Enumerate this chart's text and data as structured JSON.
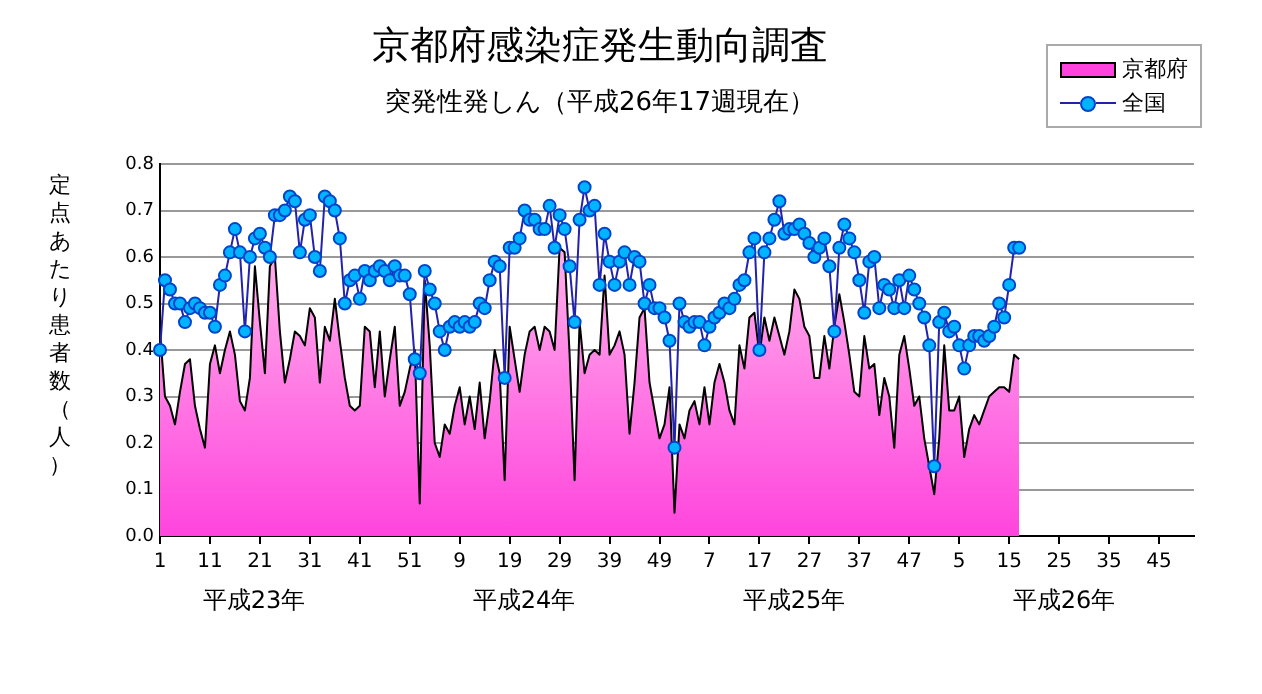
{
  "chart_data": {
    "type": "line",
    "title": "京都府感染症発生動向調査",
    "subtitle": "突発性発しん（平成26年17週現在）",
    "ylabel": "定点あたり患者数（人）",
    "categories": [
      "1",
      null,
      null,
      null,
      null,
      null,
      null,
      null,
      null,
      null,
      "11",
      null,
      null,
      null,
      null,
      null,
      null,
      null,
      null,
      null,
      "21",
      null,
      null,
      null,
      null,
      null,
      null,
      null,
      null,
      null,
      "31",
      null,
      null,
      null,
      null,
      null,
      null,
      null,
      null,
      null,
      "41",
      null,
      null,
      null,
      null,
      null,
      null,
      null,
      null,
      null,
      "51",
      null,
      null,
      null,
      null,
      null,
      null,
      null,
      null,
      null,
      "9",
      null,
      null,
      null,
      null,
      null,
      null,
      null,
      null,
      null,
      "19",
      null,
      null,
      null,
      null,
      null,
      null,
      null,
      null,
      null,
      "29",
      null,
      null,
      null,
      null,
      null,
      null,
      null,
      null,
      null,
      "39",
      null,
      null,
      null,
      null,
      null,
      null,
      null,
      null,
      null,
      "49",
      null,
      null,
      null,
      null,
      null,
      null,
      null,
      null,
      null,
      "7",
      null,
      null,
      null,
      null,
      null,
      null,
      null,
      null,
      null,
      "17",
      null,
      null,
      null,
      null,
      null,
      null,
      null,
      null,
      null,
      "27",
      null,
      null,
      null,
      null,
      null,
      null,
      null,
      null,
      null,
      "37",
      null,
      null,
      null,
      null,
      null,
      null,
      null,
      null,
      null,
      "47",
      null,
      null,
      null,
      null,
      null,
      null,
      null,
      null,
      null,
      "5",
      null,
      null,
      null,
      null,
      null,
      null,
      null,
      null,
      null,
      "15",
      null,
      null,
      null,
      null,
      null,
      null,
      null,
      null,
      null,
      "25",
      null,
      null,
      null,
      null,
      null,
      null,
      null,
      null,
      null,
      "35",
      null,
      null,
      null,
      null,
      null,
      null,
      null,
      null,
      null,
      "45",
      null,
      null,
      null,
      null,
      null,
      null,
      null
    ],
    "series": [
      {
        "name": "京都府",
        "type": "area",
        "color": "#ff44dd",
        "marker": "none",
        "values": [
          0.44,
          0.3,
          0.28,
          0.24,
          0.31,
          0.37,
          0.38,
          0.28,
          0.23,
          0.19,
          0.37,
          0.41,
          0.35,
          0.4,
          0.44,
          0.39,
          0.29,
          0.27,
          0.34,
          0.58,
          0.46,
          0.35,
          0.58,
          0.6,
          0.44,
          0.33,
          0.38,
          0.44,
          0.43,
          0.41,
          0.49,
          0.47,
          0.33,
          0.45,
          0.42,
          0.51,
          0.42,
          0.34,
          0.28,
          0.27,
          0.28,
          0.45,
          0.44,
          0.32,
          0.44,
          0.3,
          0.38,
          0.45,
          0.28,
          0.31,
          0.36,
          0.4,
          0.07,
          0.55,
          0.41,
          0.2,
          0.17,
          0.24,
          0.22,
          0.28,
          0.32,
          0.24,
          0.3,
          0.23,
          0.33,
          0.21,
          0.29,
          0.4,
          0.35,
          0.12,
          0.45,
          0.38,
          0.31,
          0.39,
          0.44,
          0.45,
          0.4,
          0.45,
          0.44,
          0.4,
          0.62,
          0.61,
          0.39,
          0.12,
          0.46,
          0.35,
          0.39,
          0.4,
          0.39,
          0.56,
          0.39,
          0.41,
          0.44,
          0.39,
          0.22,
          0.33,
          0.47,
          0.49,
          0.33,
          0.27,
          0.21,
          0.24,
          0.32,
          0.05,
          0.24,
          0.21,
          0.27,
          0.29,
          0.24,
          0.32,
          0.24,
          0.33,
          0.37,
          0.33,
          0.27,
          0.24,
          0.41,
          0.36,
          0.47,
          0.48,
          0.39,
          0.47,
          0.42,
          0.47,
          0.43,
          0.39,
          0.44,
          0.53,
          0.51,
          0.45,
          0.43,
          0.34,
          0.34,
          0.43,
          0.36,
          0.45,
          0.52,
          0.46,
          0.39,
          0.31,
          0.3,
          0.43,
          0.36,
          0.37,
          0.26,
          0.34,
          0.3,
          0.19,
          0.39,
          0.43,
          0.36,
          0.28,
          0.3,
          0.21,
          0.15,
          0.09,
          0.21,
          0.41,
          0.27,
          0.27,
          0.3,
          0.17,
          0.23,
          0.26,
          0.24,
          0.27,
          0.3,
          0.31,
          0.32,
          0.32,
          0.31,
          0.39,
          0.38,
          null,
          null,
          null,
          null,
          null,
          null,
          null,
          null,
          null,
          null,
          null,
          null,
          null,
          null,
          null,
          null,
          null,
          null,
          null,
          null,
          null,
          null,
          null,
          null,
          null,
          null,
          null,
          null,
          null,
          null,
          null,
          null,
          null,
          null,
          null
        ]
      },
      {
        "name": "全国",
        "type": "line",
        "color": "#00b4ff",
        "marker": "circle",
        "values": [
          0.4,
          0.55,
          0.53,
          0.5,
          0.5,
          0.46,
          0.49,
          0.5,
          0.49,
          0.48,
          0.48,
          0.45,
          0.54,
          0.56,
          0.61,
          0.66,
          0.61,
          0.44,
          0.6,
          0.64,
          0.65,
          0.62,
          0.6,
          0.69,
          0.69,
          0.7,
          0.73,
          0.72,
          0.61,
          0.68,
          0.69,
          0.6,
          0.57,
          0.73,
          0.72,
          0.7,
          0.64,
          0.5,
          0.55,
          0.56,
          0.51,
          0.57,
          0.55,
          0.57,
          0.58,
          0.57,
          0.55,
          0.58,
          0.56,
          0.56,
          0.52,
          0.38,
          0.35,
          0.57,
          0.53,
          0.5,
          0.44,
          0.4,
          0.45,
          0.46,
          0.45,
          0.46,
          0.45,
          0.46,
          0.5,
          0.49,
          0.55,
          0.59,
          0.58,
          0.34,
          0.62,
          0.62,
          0.64,
          0.7,
          0.68,
          0.68,
          0.66,
          0.66,
          0.71,
          0.62,
          0.69,
          0.66,
          0.58,
          0.46,
          0.68,
          0.75,
          0.7,
          0.71,
          0.54,
          0.65,
          0.59,
          0.54,
          0.59,
          0.61,
          0.54,
          0.6,
          0.59,
          0.5,
          0.54,
          0.49,
          0.49,
          0.47,
          0.42,
          0.19,
          0.5,
          0.46,
          0.45,
          0.46,
          0.46,
          0.41,
          0.45,
          0.47,
          0.48,
          0.5,
          0.49,
          0.51,
          0.54,
          0.55,
          0.61,
          0.64,
          0.4,
          0.61,
          0.64,
          0.68,
          0.72,
          0.65,
          0.66,
          0.66,
          0.67,
          0.65,
          0.63,
          0.6,
          0.62,
          0.64,
          0.58,
          0.44,
          0.62,
          0.67,
          0.64,
          0.61,
          0.55,
          0.48,
          0.59,
          0.6,
          0.49,
          0.54,
          0.53,
          0.49,
          0.55,
          0.49,
          0.56,
          0.53,
          0.5,
          0.47,
          0.41,
          0.15,
          0.46,
          0.48,
          0.44,
          0.45,
          0.41,
          0.36,
          0.41,
          0.43,
          0.43,
          0.42,
          0.43,
          0.45,
          0.5,
          0.47,
          0.54,
          0.62,
          0.62,
          null,
          null,
          null,
          null,
          null,
          null,
          null,
          null,
          null,
          null,
          null,
          null,
          null,
          null,
          null,
          null,
          null,
          null,
          null,
          null,
          null,
          null,
          null,
          null,
          null,
          null,
          null,
          null,
          null,
          null,
          null,
          null,
          null,
          null,
          null
        ]
      }
    ],
    "ylim": [
      0,
      0.8
    ],
    "yticks": [
      {
        "value": 0,
        "label": "0.0"
      },
      0.1,
      0.2,
      0.3,
      0.4,
      0.5,
      0.6,
      0.7,
      0.8
    ],
    "grid": "y",
    "legend": "top right",
    "annotations": [
      "平成23年",
      "平成24年",
      "平成25年",
      "平成26年"
    ]
  }
}
